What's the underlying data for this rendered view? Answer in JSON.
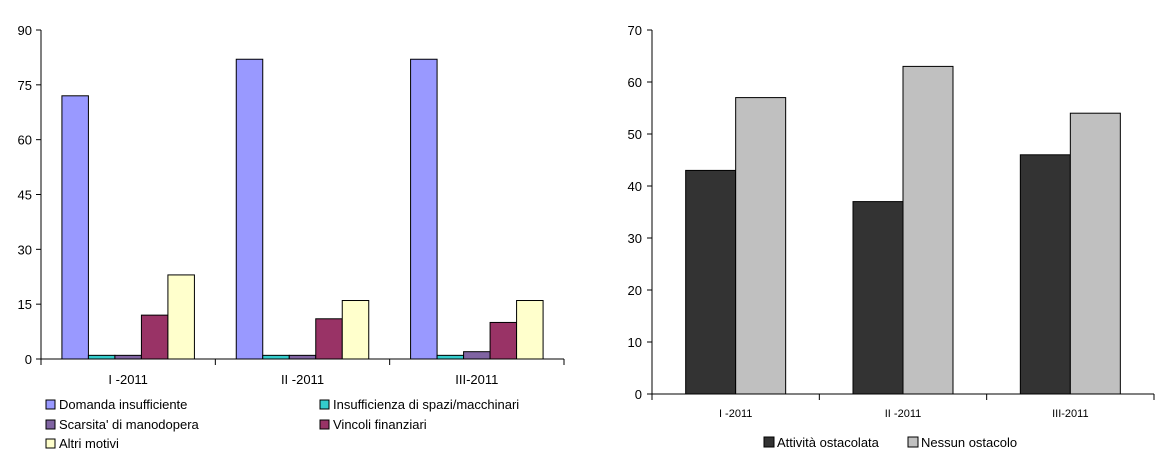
{
  "chart_data": [
    {
      "type": "bar",
      "categories": [
        "I -2011",
        "II -2011",
        "III-2011"
      ],
      "series": [
        {
          "name": "Domanda insufficiente",
          "values": [
            72,
            82,
            82
          ]
        },
        {
          "name": "Insufficienza di spazi/macchinari",
          "values": [
            1,
            1,
            1
          ]
        },
        {
          "name": "Scarsita' di manodopera",
          "values": [
            1,
            1,
            2
          ]
        },
        {
          "name": "Vincoli finanziari",
          "values": [
            12,
            11,
            10
          ]
        },
        {
          "name": "Altri motivi",
          "values": [
            23,
            16,
            16
          ]
        }
      ],
      "ylim": [
        0,
        90
      ],
      "yticks": [
        "0",
        "15",
        "30",
        "45",
        "60",
        "75",
        "90"
      ],
      "grid": false,
      "legend_position": "bottom",
      "colors": [
        "#9999ff",
        "#33cccc",
        "#8064a2",
        "#993366",
        "#ffffcc"
      ]
    },
    {
      "type": "bar",
      "categories": [
        "I -2011",
        "II -2011",
        "III-2011"
      ],
      "series": [
        {
          "name": "Attività ostacolata",
          "values": [
            43,
            37,
            46
          ]
        },
        {
          "name": "Nessun ostacolo",
          "values": [
            57,
            63,
            54
          ]
        }
      ],
      "ylim": [
        0,
        70
      ],
      "yticks": [
        "0",
        "10",
        "20",
        "30",
        "40",
        "50",
        "60",
        "70"
      ],
      "grid": false,
      "legend_position": "bottom",
      "colors": [
        "#333333",
        "#c0c0c0"
      ]
    }
  ]
}
